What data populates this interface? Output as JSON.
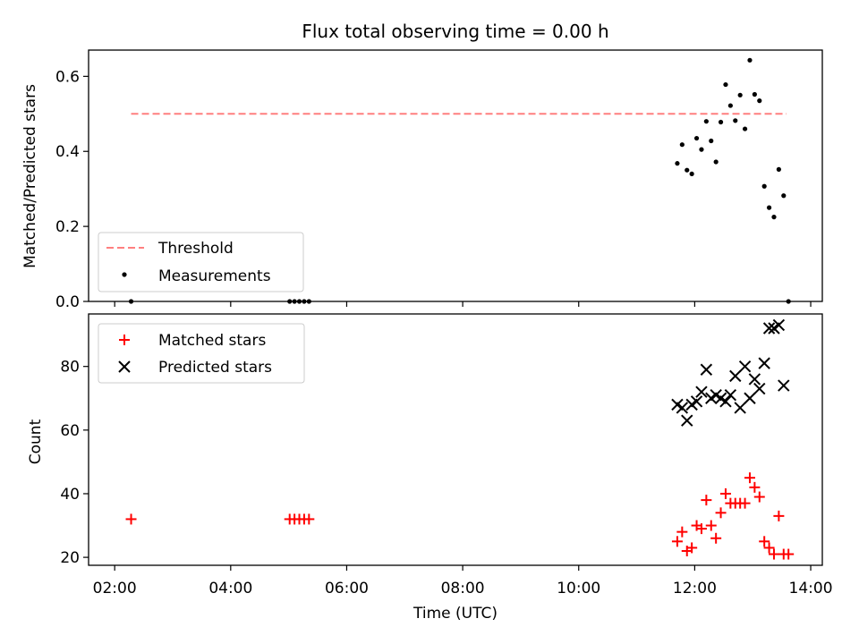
{
  "title": "Flux total observing time = 0.00 h",
  "xlabel": "Time (UTC)",
  "x_ticks": [
    "02:00",
    "04:00",
    "06:00",
    "08:00",
    "10:00",
    "12:00",
    "14:00"
  ],
  "colors": {
    "threshold": "#ff7f7f",
    "measurements": "#000000",
    "matched": "#ff0000",
    "predicted": "#000000"
  },
  "chart_data": [
    {
      "type": "scatter",
      "ylabel": "Matched/Predicted stars",
      "xlim_hours": [
        1.55,
        14.2
      ],
      "ylim": [
        0,
        0.67
      ],
      "y_ticks": [
        "0.0",
        "0.2",
        "0.4",
        "0.6"
      ],
      "y_tick_values": [
        0,
        0.2,
        0.4,
        0.6
      ],
      "grid": false,
      "legend_position": "lower-left",
      "threshold": {
        "name": "Threshold",
        "value": 0.5,
        "x_range": [
          "02:17",
          "13:35"
        ],
        "style": "dashed"
      },
      "series": [
        {
          "name": "Measurements",
          "x": [
            "02:17",
            "05:01",
            "05:06",
            "05:11",
            "05:16",
            "05:21",
            "11:42",
            "11:47",
            "11:52",
            "11:57",
            "12:02",
            "12:07",
            "12:12",
            "12:17",
            "12:22",
            "12:27",
            "12:32",
            "12:37",
            "12:42",
            "12:47",
            "12:52",
            "12:57",
            "13:02",
            "13:07",
            "13:12",
            "13:17",
            "13:22",
            "13:27",
            "13:32",
            "13:37"
          ],
          "y": [
            0,
            0,
            0,
            0,
            0,
            0,
            0.368,
            0.418,
            0.35,
            0.34,
            0.435,
            0.405,
            0.48,
            0.428,
            0.372,
            0.478,
            0.578,
            0.522,
            0.482,
            0.55,
            0.46,
            0.643,
            0.552,
            0.535,
            0.307,
            0.25,
            0.225,
            0.352,
            0.282,
            0
          ]
        }
      ]
    },
    {
      "type": "scatter",
      "ylabel": "Count",
      "xlim_hours": [
        1.55,
        14.2
      ],
      "ylim": [
        17.5,
        96.5
      ],
      "y_ticks": [
        "20",
        "40",
        "60",
        "80"
      ],
      "y_tick_values": [
        20,
        40,
        60,
        80
      ],
      "grid": false,
      "legend_position": "upper-left",
      "series": [
        {
          "name": "Matched stars",
          "marker": "plus",
          "x": [
            "02:17",
            "05:01",
            "05:06",
            "05:11",
            "05:16",
            "05:21",
            "11:42",
            "11:47",
            "11:52",
            "11:57",
            "12:02",
            "12:07",
            "12:12",
            "12:17",
            "12:22",
            "12:27",
            "12:32",
            "12:37",
            "12:42",
            "12:47",
            "12:52",
            "12:57",
            "13:02",
            "13:07",
            "13:12",
            "13:17",
            "13:22",
            "13:27",
            "13:32",
            "13:37"
          ],
          "y": [
            32,
            32,
            32,
            32,
            32,
            32,
            25,
            28,
            22,
            23,
            30,
            29,
            38,
            30,
            26,
            34,
            40,
            37,
            37,
            37,
            37,
            45,
            42,
            39,
            25,
            23,
            21,
            33,
            21,
            21
          ]
        },
        {
          "name": "Predicted stars",
          "marker": "x",
          "x": [
            "11:42",
            "11:47",
            "11:52",
            "11:57",
            "12:02",
            "12:07",
            "12:12",
            "12:17",
            "12:22",
            "12:27",
            "12:32",
            "12:37",
            "12:42",
            "12:47",
            "12:52",
            "12:57",
            "13:02",
            "13:07",
            "13:12",
            "13:17",
            "13:22",
            "13:27",
            "13:32"
          ],
          "y": [
            68,
            67,
            63,
            68,
            69,
            72,
            79,
            70,
            71,
            70,
            69,
            71,
            77,
            67,
            80,
            70,
            76,
            73,
            81,
            92,
            92,
            93,
            74
          ]
        }
      ]
    }
  ]
}
